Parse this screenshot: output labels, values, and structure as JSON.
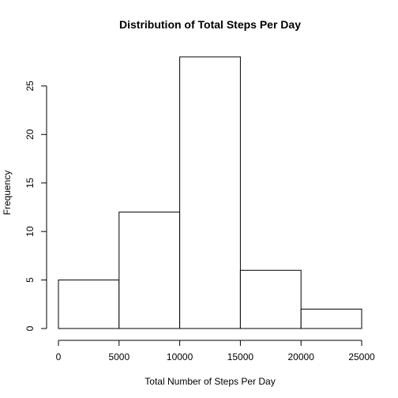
{
  "chart_data": {
    "type": "bar",
    "title": "Distribution of Total Steps Per Day",
    "xlabel": "Total Number of Steps Per Day",
    "ylabel": "Frequency",
    "bins": [
      {
        "from": 0,
        "to": 5000,
        "count": 5
      },
      {
        "from": 5000,
        "to": 10000,
        "count": 12
      },
      {
        "from": 10000,
        "to": 15000,
        "count": 28
      },
      {
        "from": 15000,
        "to": 20000,
        "count": 6
      },
      {
        "from": 20000,
        "to": 25000,
        "count": 2
      }
    ],
    "xticks": [
      0,
      5000,
      10000,
      15000,
      20000,
      25000
    ],
    "xtick_labels": [
      "0",
      "5000",
      "10000",
      "15000",
      "20000",
      "25000"
    ],
    "yticks": [
      0,
      5,
      10,
      15,
      20,
      25
    ],
    "ytick_labels": [
      "0",
      "5",
      "10",
      "15",
      "20",
      "25"
    ],
    "xlim": [
      0,
      25000
    ],
    "ylim": [
      0,
      28
    ],
    "grid": false,
    "legend": "none",
    "colors": {
      "bar_fill": "#ffffff",
      "bar_stroke": "#000000"
    }
  }
}
